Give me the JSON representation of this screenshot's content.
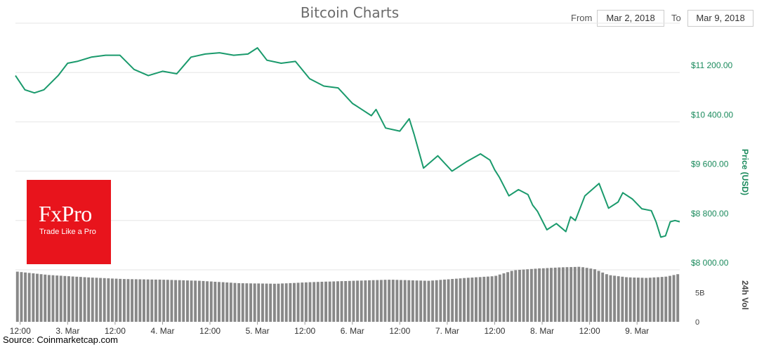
{
  "header": {
    "title": "Bitcoin Charts"
  },
  "range": {
    "from_label": "From",
    "from_value": "Mar 2, 2018",
    "to_label": "To",
    "to_value": "Mar 9, 2018"
  },
  "logo": {
    "name": "FxPro",
    "tagline": "Trade Like a Pro"
  },
  "source": "Source: Coinmarketcap.com",
  "colors": {
    "price_line": "#1a9a6c",
    "price_axis_text": "#1a8a5c",
    "volume_bars": "#888888",
    "grid": "#e6e6e6"
  },
  "chart_data": {
    "type": "line",
    "price_axis": {
      "label": "Price (USD)",
      "ticks": [
        "$8 000.00",
        "$8 800.00",
        "$9 600.00",
        "$10 400.00",
        "$11 200.00"
      ],
      "tick_values": [
        8000,
        8800,
        9600,
        10400,
        11200
      ],
      "range": [
        8000,
        12000
      ]
    },
    "volume_axis": {
      "label": "24h Vol",
      "ticks": [
        "0",
        "5B"
      ],
      "tick_values": [
        0,
        5
      ],
      "range": [
        0,
        9
      ]
    },
    "x_axis": {
      "ticks": [
        "12:00",
        "3. Mar",
        "12:00",
        "4. Mar",
        "12:00",
        "5. Mar",
        "12:00",
        "6. Mar",
        "12:00",
        "7. Mar",
        "12:00",
        "8. Mar",
        "12:00",
        "9. Mar"
      ],
      "tick_positions": [
        0.5,
        1,
        1.5,
        2,
        2.5,
        3,
        3.5,
        4,
        4.5,
        5,
        5.5,
        6,
        6.5,
        7
      ],
      "range": [
        0.45,
        7.45
      ]
    },
    "grid": true,
    "legend": "none",
    "series": [
      {
        "name": "Price (USD)",
        "x": [
          0.45,
          0.55,
          0.65,
          0.75,
          0.9,
          1.0,
          1.1,
          1.25,
          1.4,
          1.55,
          1.7,
          1.85,
          2.0,
          2.15,
          2.3,
          2.45,
          2.6,
          2.75,
          2.9,
          3.0,
          3.1,
          3.25,
          3.4,
          3.55,
          3.7,
          3.85,
          4.0,
          4.1,
          4.2,
          4.25,
          4.35,
          4.5,
          4.6,
          4.65,
          4.75,
          4.9,
          5.05,
          5.2,
          5.35,
          5.45,
          5.5,
          5.55,
          5.65,
          5.75,
          5.85,
          5.9,
          5.95,
          6.05,
          6.15,
          6.25,
          6.3,
          6.35,
          6.45,
          6.6,
          6.7,
          6.8,
          6.85,
          6.95,
          7.05,
          7.15,
          7.2,
          7.25,
          7.3,
          7.35,
          7.4,
          7.45
        ],
        "values": [
          11150,
          10920,
          10870,
          10920,
          11150,
          11350,
          11380,
          11450,
          11480,
          11480,
          11250,
          11150,
          11220,
          11180,
          11450,
          11500,
          11520,
          11480,
          11500,
          11600,
          11400,
          11350,
          11380,
          11100,
          10980,
          10950,
          10700,
          10600,
          10500,
          10600,
          10300,
          10250,
          10450,
          10200,
          9650,
          9850,
          9600,
          9750,
          9880,
          9780,
          9620,
          9500,
          9200,
          9300,
          9220,
          9050,
          8950,
          8650,
          8750,
          8620,
          8860,
          8800,
          9200,
          9400,
          9000,
          9100,
          9250,
          9150,
          8990,
          8960,
          8780,
          8530,
          8550,
          8780,
          8800,
          8780
        ]
      },
      {
        "name": "24h Vol",
        "x": [
          0.45,
          0.8,
          1.2,
          1.6,
          2.0,
          2.4,
          2.8,
          3.2,
          3.6,
          4.0,
          4.4,
          4.8,
          5.2,
          5.5,
          5.7,
          5.95,
          6.2,
          6.4,
          6.55,
          6.7,
          6.9,
          7.1,
          7.3,
          7.45
        ],
        "values": [
          8.6,
          8.0,
          7.6,
          7.3,
          7.2,
          7.0,
          6.6,
          6.5,
          6.8,
          7.0,
          7.2,
          7.0,
          7.5,
          7.8,
          8.8,
          9.1,
          9.3,
          9.4,
          9.0,
          8.0,
          7.6,
          7.5,
          7.7,
          8.2
        ]
      }
    ]
  }
}
